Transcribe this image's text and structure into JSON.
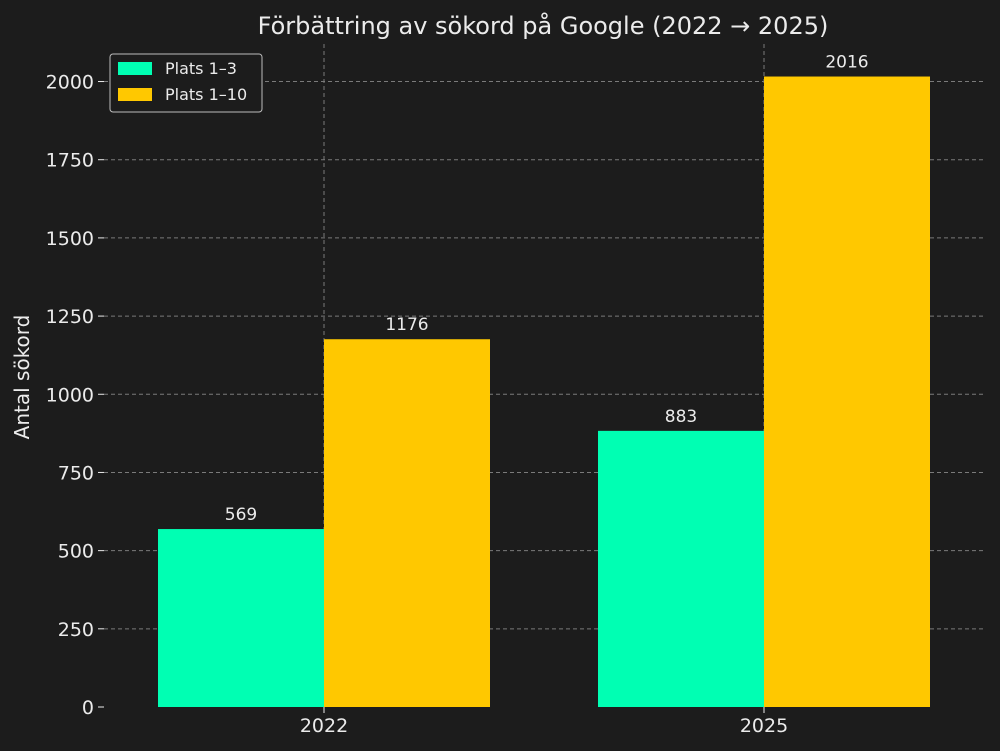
{
  "chart_data": {
    "type": "bar",
    "title": "Förbättring av sökord på Google (2022 → 2025)",
    "xlabel": "",
    "ylabel": "Antal sökord",
    "categories": [
      "2022",
      "2025"
    ],
    "series": [
      {
        "name": "Plats 1–3",
        "color": "#00ffb3",
        "values": [
          569,
          883
        ]
      },
      {
        "name": "Plats 1–10",
        "color": "#ffc800",
        "values": [
          1176,
          2016
        ]
      }
    ],
    "ylim": [
      0,
      2120
    ],
    "yticks": [
      0,
      250,
      500,
      750,
      1000,
      1250,
      1500,
      1750,
      2000
    ],
    "grid": true,
    "legend": "top-left",
    "colors": {
      "background": "#1c1c1c",
      "text": "#ebebeb",
      "grid": "#7a7a7a"
    }
  }
}
